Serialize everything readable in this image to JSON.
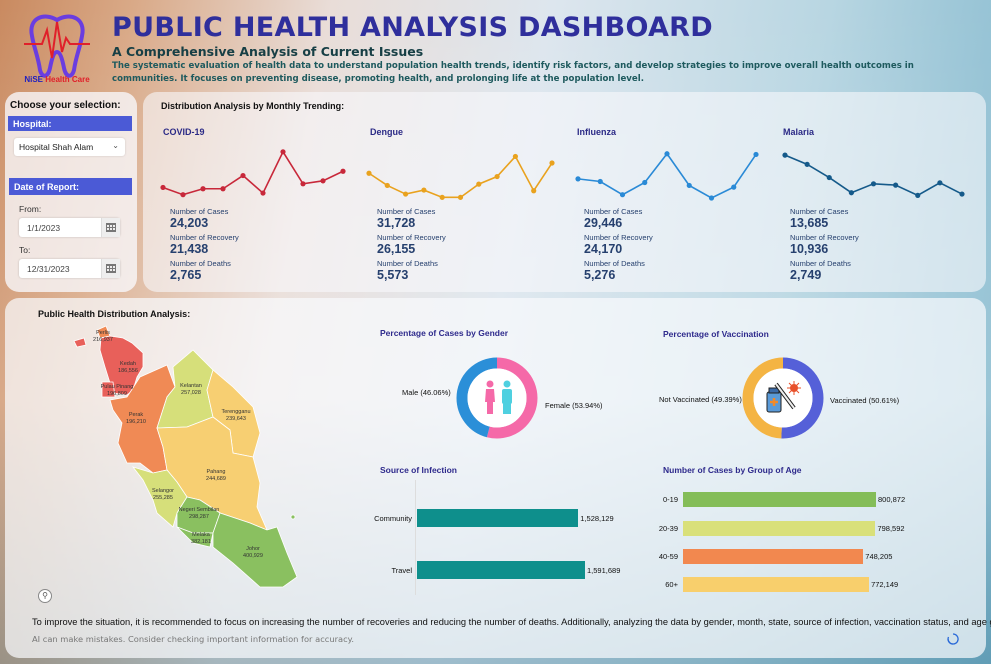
{
  "header": {
    "logo_text": "NiSE Health Care",
    "title": "PUBLIC HEALTH ANALYSIS DASHBOARD",
    "subtitle": "A Comprehensive Analysis of Current Issues",
    "description": "The systematic evaluation of health data to understand population health trends, identify risk factors, and develop strategies to improve overall health outcomes in communities. It focuses on preventing disease, promoting health, and prolonging life at the population level."
  },
  "sidebar": {
    "title": "Choose your selection:",
    "hospital_header": "Hospital:",
    "hospital_value": "Hospital Shah Alam",
    "date_header": "Date of Report:",
    "from_label": "From:",
    "from_value": "1/1/2023",
    "to_label": "To:",
    "to_value": "12/31/2023"
  },
  "trends": {
    "title": "Distribution Analysis by Monthly Trending:",
    "cases_label": "Number of Cases",
    "recovery_label": "Number of Recovery",
    "deaths_label": "Number of Deaths",
    "diseases": [
      {
        "name": "COVID-19",
        "cases": "24,203",
        "recovery": "21,438",
        "deaths": "2,765",
        "color": "#c8283a"
      },
      {
        "name": "Dengue",
        "cases": "31,728",
        "recovery": "26,155",
        "deaths": "5,573",
        "color": "#e9a21e"
      },
      {
        "name": "Influenza",
        "cases": "29,446",
        "recovery": "24,170",
        "deaths": "5,276",
        "color": "#2a8ad6"
      },
      {
        "name": "Malaria",
        "cases": "13,685",
        "recovery": "10,936",
        "deaths": "2,749",
        "color": "#155a8a"
      }
    ]
  },
  "distribution": {
    "title": "Public Health Distribution Analysis:",
    "states": [
      {
        "name": "Perlis",
        "value": "216,937"
      },
      {
        "name": "Kedah",
        "value": "186,556"
      },
      {
        "name": "Pulau Pinang",
        "value": "196,809"
      },
      {
        "name": "Perak",
        "value": "196,210"
      },
      {
        "name": "Kelantan",
        "value": "257,028"
      },
      {
        "name": "Terengganu",
        "value": "239,643"
      },
      {
        "name": "Pahang",
        "value": "244,689"
      },
      {
        "name": "Selangor",
        "value": "255,285"
      },
      {
        "name": "Negeri Sembilan",
        "value": "298,287"
      },
      {
        "name": "Melaka",
        "value": "382,181"
      },
      {
        "name": "Johor",
        "value": "400,929"
      }
    ]
  },
  "footer": {
    "recommendation": "To improve the situation, it is recommended to focus on increasing the number of recoveries and reducing the number of deaths. Additionally, analyzing the data by gender, month, state, source of infection, vaccination status, and age group can",
    "disclaimer": "AI can make mistakes. Consider checking important information for accuracy."
  },
  "chart_data": [
    {
      "type": "line",
      "title": "COVID-19",
      "y_relative": [
        32,
        10,
        28,
        28,
        68,
        15,
        140,
        43,
        52,
        81
      ]
    },
    {
      "type": "line",
      "title": "Dengue",
      "y_relative": [
        75,
        38,
        12,
        24,
        2,
        2,
        42,
        65,
        126,
        22,
        106
      ]
    },
    {
      "type": "line",
      "title": "Influenza",
      "y_relative": [
        58,
        50,
        10,
        47,
        134,
        38,
        0,
        33,
        132
      ]
    },
    {
      "type": "line",
      "title": "Malaria",
      "y_relative": [
        130,
        102,
        62,
        16,
        43,
        39,
        8,
        46,
        12
      ]
    },
    {
      "type": "pie",
      "title": "Percentage of Cases by Gender",
      "slices": [
        {
          "label": "Female (53.94%)",
          "value": 53.94,
          "color": "#f569a8"
        },
        {
          "label": "Male (46.06%)",
          "value": 46.06,
          "color": "#2b8fd8"
        }
      ]
    },
    {
      "type": "pie",
      "title": "Percentage of Vaccination",
      "slices": [
        {
          "label": "Vaccinated (50.61%)",
          "value": 50.61,
          "color": "#5560d8"
        },
        {
          "label": "Not Vaccinated (49.39%)",
          "value": 49.39,
          "color": "#f4b443"
        }
      ]
    },
    {
      "type": "bar",
      "title": "Source of Infection",
      "categories": [
        "Community",
        "Travel"
      ],
      "values": [
        1528129,
        1591689
      ],
      "labels": [
        "1,528,129",
        "1,591,689"
      ],
      "color": "#0e8f8c"
    },
    {
      "type": "bar",
      "title": "Number of Cases by Group of Age",
      "categories": [
        "0-19",
        "20-39",
        "40-59",
        "60+"
      ],
      "values": [
        800872,
        798592,
        748205,
        772149
      ],
      "labels": [
        "800,872",
        "798,592",
        "748,205",
        "772,149"
      ],
      "colors": [
        "#84bd58",
        "#d9e07a",
        "#f2884f",
        "#f8cf6c"
      ]
    }
  ]
}
